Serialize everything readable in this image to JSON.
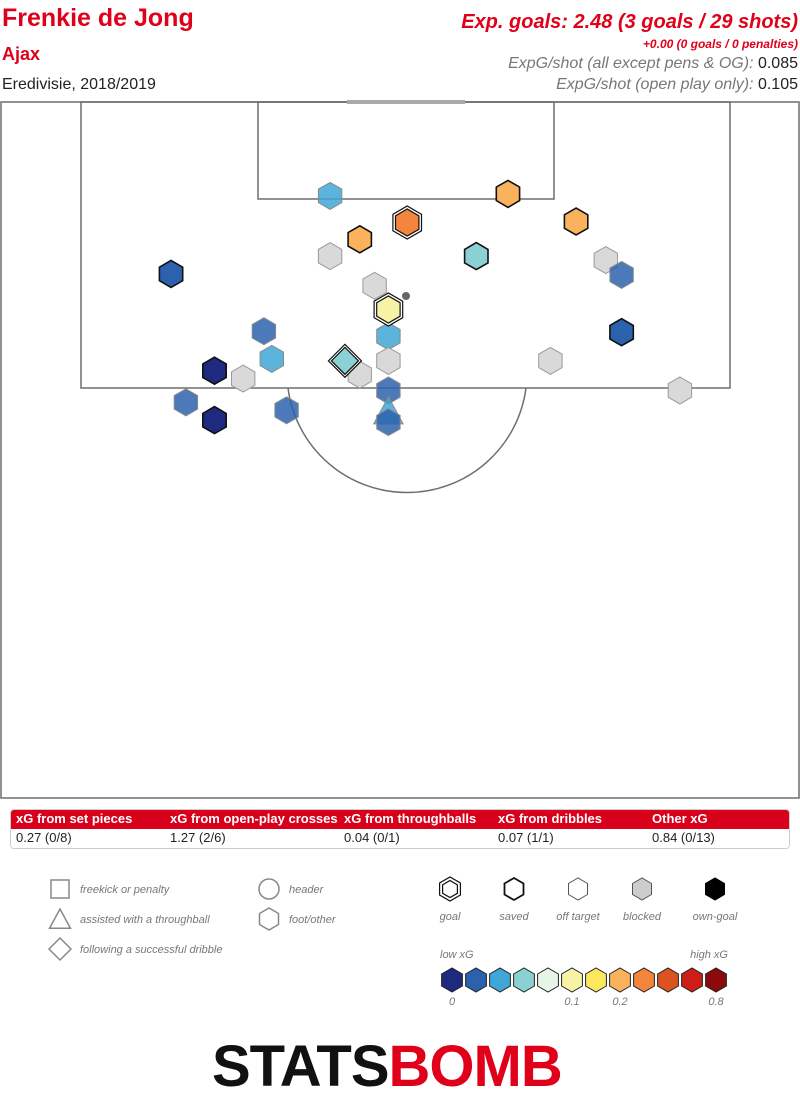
{
  "header": {
    "player": "Frenkie de Jong",
    "team": "Ajax",
    "competition": "Eredivisie, 2018/2019",
    "xg_total": "Exp. goals: 2.48 (3 goals / 29 shots)",
    "xg_penalties": "+0.00 (0 goals / 0 penalties)",
    "xg_per_shot_label": "ExpG/shot (all except pens & OG):",
    "xg_per_shot_value": "0.085",
    "xg_per_shot_open_label": "ExpG/shot (open play only):",
    "xg_per_shot_open_value": "0.105"
  },
  "summary": [
    {
      "label": "xG from set pieces",
      "value": "0.27 (0/8)"
    },
    {
      "label": "xG from open-play crosses",
      "value": "1.27 (2/6)"
    },
    {
      "label": "xG from throughballs",
      "value": "0.04 (0/1)"
    },
    {
      "label": "xG from dribbles",
      "value": "0.07 (1/1)"
    },
    {
      "label": "Other xG",
      "value": "0.84 (0/13)"
    }
  ],
  "legend": {
    "shapes": [
      {
        "shape": "square",
        "label": "freekick or penalty"
      },
      {
        "shape": "triangle",
        "label": "assisted with a throughball"
      },
      {
        "shape": "diamond",
        "label": "following a successful dribble"
      },
      {
        "shape": "circle",
        "label": "header"
      },
      {
        "shape": "hexagon",
        "label": "foot/other"
      }
    ],
    "outcomes": [
      {
        "outcome": "goal",
        "label": "goal"
      },
      {
        "outcome": "saved",
        "label": "saved"
      },
      {
        "outcome": "off_target",
        "label": "off target"
      },
      {
        "outcome": "blocked",
        "label": "blocked"
      },
      {
        "outcome": "own_goal",
        "label": "own-goal"
      }
    ],
    "scale_low": "low xG",
    "scale_high": "high xG",
    "scale_colors": [
      "#1d2a80",
      "#2c62ad",
      "#3fa6d6",
      "#8bd0d2",
      "#e6f5e6",
      "#f7f3a6",
      "#fde761",
      "#fbb25c",
      "#f3853c",
      "#d9541e",
      "#cc1d16",
      "#8c0a0e"
    ],
    "scale_ticks": [
      {
        "index": 0,
        "label": "0"
      },
      {
        "index": 5,
        "label": "0.1"
      },
      {
        "index": 7,
        "label": "0.2"
      },
      {
        "index": 11,
        "label": "0.8"
      }
    ]
  },
  "brand": {
    "part1": "STATS",
    "part2": "BOMB"
  },
  "chart_data": {
    "type": "scatter",
    "description_units": "pitch yards: x = across width from left touchline (0-80), y = distance from goal line (0-60)",
    "shots": [
      {
        "x": 25.7,
        "y": 23.2,
        "xg": 0.02,
        "outcome": "off_target",
        "technique": "foot"
      },
      {
        "x": 40.2,
        "y": 12.2,
        "xg": 0.3,
        "outcome": "goal",
        "technique": "foot"
      },
      {
        "x": 35.4,
        "y": 13.9,
        "xg": 0.2,
        "outcome": "saved",
        "technique": "foot"
      },
      {
        "x": 50.4,
        "y": 9.3,
        "xg": 0.28,
        "outcome": "saved",
        "technique": "foot"
      },
      {
        "x": 57.3,
        "y": 12.1,
        "xg": 0.2,
        "outcome": "saved",
        "technique": "foot"
      },
      {
        "x": 32.4,
        "y": 9.5,
        "xg": 0.04,
        "outcome": "off_target",
        "technique": "foot"
      },
      {
        "x": 32.4,
        "y": 15.6,
        "xg": null,
        "outcome": "blocked",
        "technique": "foot"
      },
      {
        "x": 47.2,
        "y": 15.6,
        "xg": 0.07,
        "outcome": "saved",
        "technique": "foot"
      },
      {
        "x": 16.3,
        "y": 17.4,
        "xg": 0.02,
        "outcome": "saved",
        "technique": "foot"
      },
      {
        "x": 36.9,
        "y": 18.6,
        "xg": null,
        "outcome": "blocked",
        "technique": "foot"
      },
      {
        "x": 38.3,
        "y": 21.0,
        "xg": 0.11,
        "outcome": "goal",
        "technique": "foot"
      },
      {
        "x": 60.3,
        "y": 16.0,
        "xg": null,
        "outcome": "blocked",
        "technique": "foot"
      },
      {
        "x": 61.9,
        "y": 17.5,
        "xg": 0.03,
        "outcome": "off_target",
        "technique": "foot"
      },
      {
        "x": 61.9,
        "y": 23.3,
        "xg": 0.03,
        "outcome": "saved",
        "technique": "foot"
      },
      {
        "x": 38.3,
        "y": 23.7,
        "xg": 0.04,
        "outcome": "off_target",
        "technique": "foot"
      },
      {
        "x": 26.5,
        "y": 26.0,
        "xg": 0.05,
        "outcome": "off_target",
        "technique": "foot"
      },
      {
        "x": 33.9,
        "y": 26.2,
        "xg": 0.07,
        "outcome": "goal",
        "technique": "dribble"
      },
      {
        "x": 38.3,
        "y": 26.2,
        "xg": null,
        "outcome": "blocked",
        "technique": "foot"
      },
      {
        "x": 54.7,
        "y": 26.2,
        "xg": null,
        "outcome": "blocked",
        "technique": "foot"
      },
      {
        "x": 20.7,
        "y": 27.2,
        "xg": 0.01,
        "outcome": "saved",
        "technique": "foot"
      },
      {
        "x": 23.6,
        "y": 28.0,
        "xg": null,
        "outcome": "blocked",
        "technique": "foot"
      },
      {
        "x": 35.4,
        "y": 27.6,
        "xg": null,
        "outcome": "blocked",
        "technique": "foot"
      },
      {
        "x": 38.3,
        "y": 29.2,
        "xg": 0.02,
        "outcome": "off_target",
        "technique": "foot"
      },
      {
        "x": 67.8,
        "y": 29.2,
        "xg": null,
        "outcome": "blocked",
        "technique": "foot"
      },
      {
        "x": 17.8,
        "y": 30.4,
        "xg": 0.02,
        "outcome": "off_target",
        "technique": "foot"
      },
      {
        "x": 28.0,
        "y": 31.2,
        "xg": 0.02,
        "outcome": "off_target",
        "technique": "foot"
      },
      {
        "x": 20.7,
        "y": 32.2,
        "xg": 0.01,
        "outcome": "saved",
        "technique": "foot"
      },
      {
        "x": 38.3,
        "y": 31.4,
        "xg": 0.04,
        "outcome": "off_target",
        "technique": "throughball"
      },
      {
        "x": 38.3,
        "y": 32.4,
        "xg": 0.02,
        "outcome": "off_target",
        "technique": "foot"
      }
    ]
  }
}
